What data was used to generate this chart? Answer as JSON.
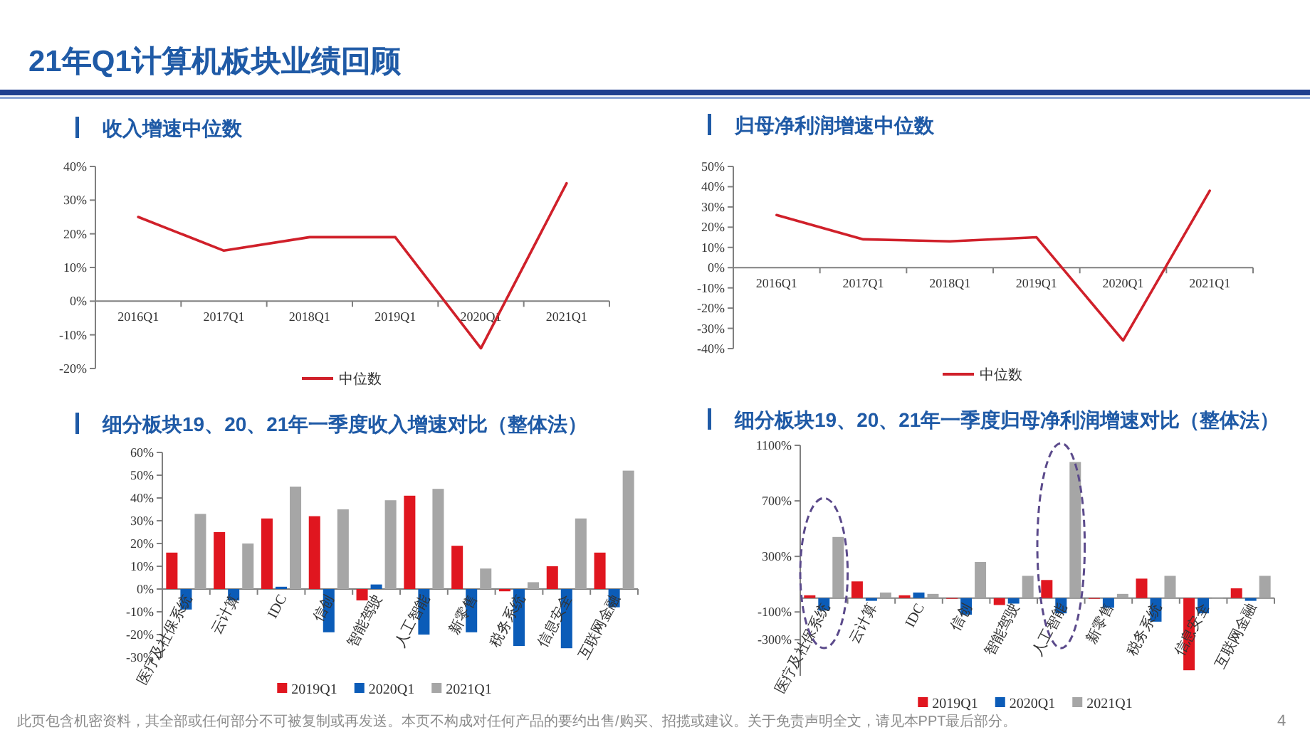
{
  "chart_data": [
    {
      "type": "other",
      "title": "21年Q1计算机板块业绩回顾",
      "annotations": [
        "此页包含机密资料，其全部或任何部分不可被复制或再发送。本页不构成对任何产品的要约出售/购买、招揽或建议。关于免责声明全文，请见本PPT最后部分。",
        "4"
      ]
    },
    {
      "type": "line",
      "title": "收入增速中位数",
      "categories": [
        "2016Q1",
        "2017Q1",
        "2018Q1",
        "2019Q1",
        "2020Q1",
        "2021Q1"
      ],
      "series": [
        {
          "name": "中位数",
          "color": "#d0202a",
          "values": [
            25,
            15,
            19,
            19,
            -14,
            35
          ]
        }
      ],
      "ylim": [
        -20,
        40
      ],
      "yticks": [
        {
          "value": -20,
          "label": "-20%"
        },
        {
          "value": -10,
          "label": "-10%"
        },
        {
          "value": 0,
          "label": "0%"
        },
        {
          "value": 10,
          "label": "10%"
        },
        {
          "value": 20,
          "label": "20%"
        },
        {
          "value": 30,
          "label": "30%"
        },
        {
          "value": 40,
          "label": "40%"
        }
      ],
      "legend": "bottom"
    },
    {
      "type": "line",
      "title": "归母净利润增速中位数",
      "categories": [
        "2016Q1",
        "2017Q1",
        "2018Q1",
        "2019Q1",
        "2020Q1",
        "2021Q1"
      ],
      "series": [
        {
          "name": "中位数",
          "color": "#d0202a",
          "values": [
            26,
            14,
            13,
            15,
            -36,
            38
          ]
        }
      ],
      "ylim": [
        -40,
        50
      ],
      "yticks": [
        {
          "value": -40,
          "label": "-40%"
        },
        {
          "value": -30,
          "label": "-30%"
        },
        {
          "value": -20,
          "label": "-20%"
        },
        {
          "value": -10,
          "label": "-10%"
        },
        {
          "value": 0,
          "label": "0%"
        },
        {
          "value": 10,
          "label": "10%"
        },
        {
          "value": 20,
          "label": "20%"
        },
        {
          "value": 30,
          "label": "30%"
        },
        {
          "value": 40,
          "label": "40%"
        },
        {
          "value": 50,
          "label": "50%"
        }
      ],
      "legend": "bottom"
    },
    {
      "type": "bar",
      "title": "细分板块19、20、21年一季度收入增速对比（整体法）",
      "categories": [
        "医疗及社保系统",
        "云计算",
        "IDC",
        "信创",
        "智能驾驶",
        "人工智能",
        "新零售",
        "税务系统",
        "信息安全",
        "互联网金融"
      ],
      "series": [
        {
          "name": "2019Q1",
          "color": "#e0161f",
          "values": [
            16,
            25,
            31,
            32,
            -5,
            41,
            19,
            -1,
            10,
            16
          ]
        },
        {
          "name": "2020Q1",
          "color": "#0b5cb8",
          "values": [
            -9,
            -5,
            1,
            -19,
            2,
            -20,
            -19,
            -25,
            -26,
            -8
          ]
        },
        {
          "name": "2021Q1",
          "color": "#a6a6a6",
          "values": [
            33,
            20,
            45,
            35,
            39,
            44,
            9,
            3,
            31,
            52
          ]
        }
      ],
      "ylim": [
        -30,
        60
      ],
      "yticks": [
        {
          "value": -30,
          "label": "-30%"
        },
        {
          "value": -20,
          "label": "-20%"
        },
        {
          "value": -10,
          "label": "-10%"
        },
        {
          "value": 0,
          "label": "0%"
        },
        {
          "value": 10,
          "label": "10%"
        },
        {
          "value": 20,
          "label": "20%"
        },
        {
          "value": 30,
          "label": "30%"
        },
        {
          "value": 40,
          "label": "40%"
        },
        {
          "value": 50,
          "label": "50%"
        },
        {
          "value": 60,
          "label": "60%"
        }
      ],
      "legend": "bottom"
    },
    {
      "type": "bar",
      "title": "细分板块19、20、21年一季度归母净利润增速对比（整体法）",
      "categories": [
        "医疗及社保系统",
        "云计算",
        "IDC",
        "信创",
        "智能驾驶",
        "人工智能",
        "新零售",
        "税务系统",
        "信息安全",
        "互联网金融"
      ],
      "series": [
        {
          "name": "2019Q1",
          "color": "#e0161f",
          "values": [
            20,
            120,
            20,
            0,
            -50,
            130,
            0,
            140,
            -520,
            70
          ]
        },
        {
          "name": "2020Q1",
          "color": "#0b5cb8",
          "values": [
            -90,
            -20,
            40,
            -120,
            -40,
            -110,
            -70,
            -170,
            -110,
            -20
          ]
        },
        {
          "name": "2021Q1",
          "color": "#a6a6a6",
          "values": [
            440,
            40,
            30,
            260,
            160,
            980,
            30,
            160,
            0,
            160
          ]
        }
      ],
      "ylim": [
        -560,
        1100
      ],
      "yticks": [
        {
          "value": -300,
          "label": "-300%"
        },
        {
          "value": -100,
          "label": "-100%"
        },
        {
          "value": 300,
          "label": "300%"
        },
        {
          "value": 700,
          "label": "700%"
        },
        {
          "value": 1100,
          "label": "1100%"
        }
      ],
      "legend": "bottom"
    }
  ]
}
